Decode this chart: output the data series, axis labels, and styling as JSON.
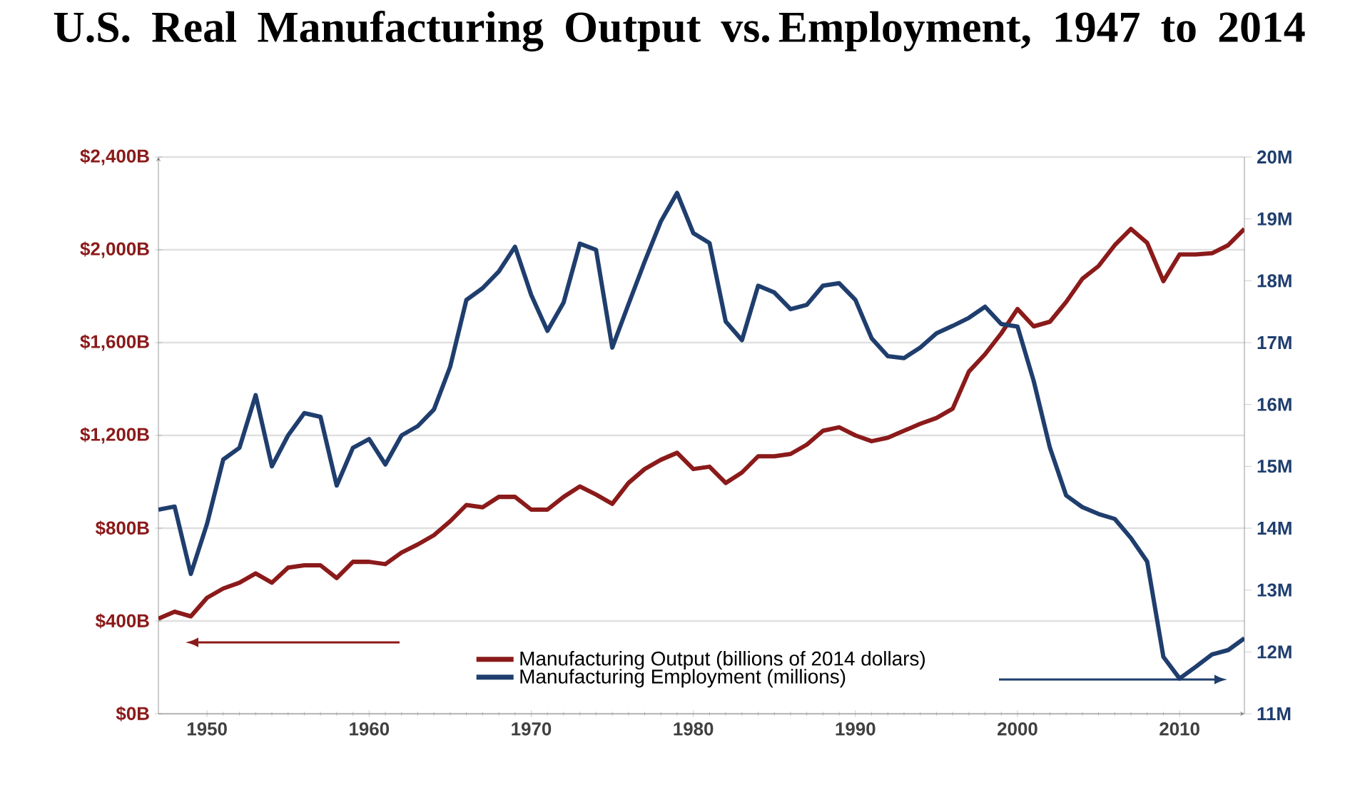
{
  "chart_data": {
    "type": "line",
    "title": "U.S. Real Manufacturing Output vs. Employment, 1947 to 2014",
    "x": [
      1947,
      1948,
      1949,
      1950,
      1951,
      1952,
      1953,
      1954,
      1955,
      1956,
      1957,
      1958,
      1959,
      1960,
      1961,
      1962,
      1963,
      1964,
      1965,
      1966,
      1967,
      1968,
      1969,
      1970,
      1971,
      1972,
      1973,
      1974,
      1975,
      1976,
      1977,
      1978,
      1979,
      1980,
      1981,
      1982,
      1983,
      1984,
      1985,
      1986,
      1987,
      1988,
      1989,
      1990,
      1991,
      1992,
      1993,
      1994,
      1995,
      1996,
      1997,
      1998,
      1999,
      2000,
      2001,
      2002,
      2003,
      2004,
      2005,
      2006,
      2007,
      2008,
      2009,
      2010,
      2011,
      2012,
      2013,
      2014
    ],
    "series": [
      {
        "name": "Manufacturing Output (billions of 2014 dollars)",
        "color": "#8b1a1a",
        "values": [
          410,
          440,
          420,
          500,
          540,
          565,
          605,
          565,
          630,
          640,
          640,
          585,
          655,
          655,
          645,
          695,
          730,
          770,
          830,
          900,
          890,
          935,
          935,
          880,
          880,
          935,
          980,
          945,
          905,
          995,
          1055,
          1095,
          1125,
          1055,
          1065,
          995,
          1040,
          1110,
          1110,
          1120,
          1160,
          1220,
          1235,
          1200,
          1175,
          1190,
          1220,
          1250,
          1275,
          1315,
          1475,
          1550,
          1640,
          1745,
          1670,
          1690,
          1775,
          1875,
          1930,
          2020,
          2090,
          2030,
          1865,
          1980,
          1980,
          1985,
          2020,
          2090
        ]
      },
      {
        "name": "Manufacturing Employment (millions)",
        "color": "#1f3e6e",
        "axis": "y2",
        "values": [
          14.3,
          14.35,
          13.26,
          14.07,
          15.11,
          15.3,
          16.15,
          15.0,
          15.5,
          15.86,
          15.8,
          14.69,
          15.3,
          15.44,
          15.03,
          15.5,
          15.65,
          15.92,
          16.61,
          17.69,
          17.88,
          18.15,
          18.55,
          17.77,
          17.19,
          17.65,
          18.6,
          18.5,
          16.92,
          17.62,
          18.31,
          18.96,
          19.42,
          18.77,
          18.61,
          17.34,
          17.04,
          17.92,
          17.81,
          17.54,
          17.61,
          17.92,
          17.96,
          17.69,
          17.07,
          16.78,
          16.75,
          16.92,
          17.15,
          17.27,
          17.4,
          17.58,
          17.3,
          17.26,
          16.38,
          15.3,
          14.53,
          14.34,
          14.23,
          14.15,
          13.84,
          13.46,
          11.92,
          11.57,
          11.76,
          11.96,
          12.03,
          12.22
        ]
      }
    ],
    "xlim": [
      1947,
      2014
    ],
    "xticks": [
      1950,
      1960,
      1970,
      1980,
      1990,
      2000,
      2010
    ],
    "ylim": [
      0,
      2400
    ],
    "yticks": [
      {
        "value": 0,
        "label": "$0B"
      },
      {
        "value": 400,
        "label": "$400B"
      },
      {
        "value": 800,
        "label": "$800B"
      },
      {
        "value": 1200,
        "label": "$1,200B"
      },
      {
        "value": 1600,
        "label": "$1,600B"
      },
      {
        "value": 2000,
        "label": "$2,000B"
      },
      {
        "value": 2400,
        "label": "$2,400B"
      }
    ],
    "y2lim": [
      11,
      20
    ],
    "y2ticks": [
      {
        "value": 11,
        "label": "11M"
      },
      {
        "value": 12,
        "label": "12M"
      },
      {
        "value": 13,
        "label": "13M"
      },
      {
        "value": 14,
        "label": "14M"
      },
      {
        "value": 15,
        "label": "15M"
      },
      {
        "value": 16,
        "label": "16M"
      },
      {
        "value": 17,
        "label": "17M"
      },
      {
        "value": 18,
        "label": "18M"
      },
      {
        "value": 19,
        "label": "19M"
      },
      {
        "value": 20,
        "label": "20M"
      }
    ],
    "grid": "y",
    "legend": "bottom"
  }
}
